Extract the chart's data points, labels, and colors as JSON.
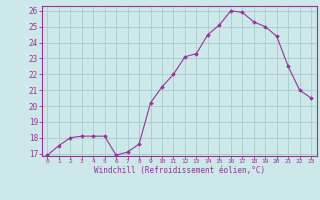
{
  "x": [
    0,
    1,
    2,
    3,
    4,
    5,
    6,
    7,
    8,
    9,
    10,
    11,
    12,
    13,
    14,
    15,
    16,
    17,
    18,
    19,
    20,
    21,
    22,
    23
  ],
  "y": [
    16.9,
    17.5,
    18.0,
    18.1,
    18.1,
    18.1,
    16.9,
    17.1,
    17.6,
    20.2,
    21.2,
    22.0,
    23.1,
    23.3,
    24.5,
    25.1,
    26.0,
    25.9,
    25.3,
    25.0,
    24.4,
    22.5,
    21.0,
    20.5
  ],
  "line_color": "#993399",
  "marker": "D",
  "marker_size": 1.8,
  "bg_color": "#cce8e8",
  "grid_color": "#aacccc",
  "tick_color": "#993399",
  "label_color": "#993399",
  "xlabel": "Windchill (Refroidissement éolien,°C)",
  "ylim": [
    17,
    26
  ],
  "xlim": [
    0,
    23
  ],
  "yticks": [
    17,
    18,
    19,
    20,
    21,
    22,
    23,
    24,
    25,
    26
  ],
  "xticks": [
    0,
    1,
    2,
    3,
    4,
    5,
    6,
    7,
    8,
    9,
    10,
    11,
    12,
    13,
    14,
    15,
    16,
    17,
    18,
    19,
    20,
    21,
    22,
    23
  ]
}
